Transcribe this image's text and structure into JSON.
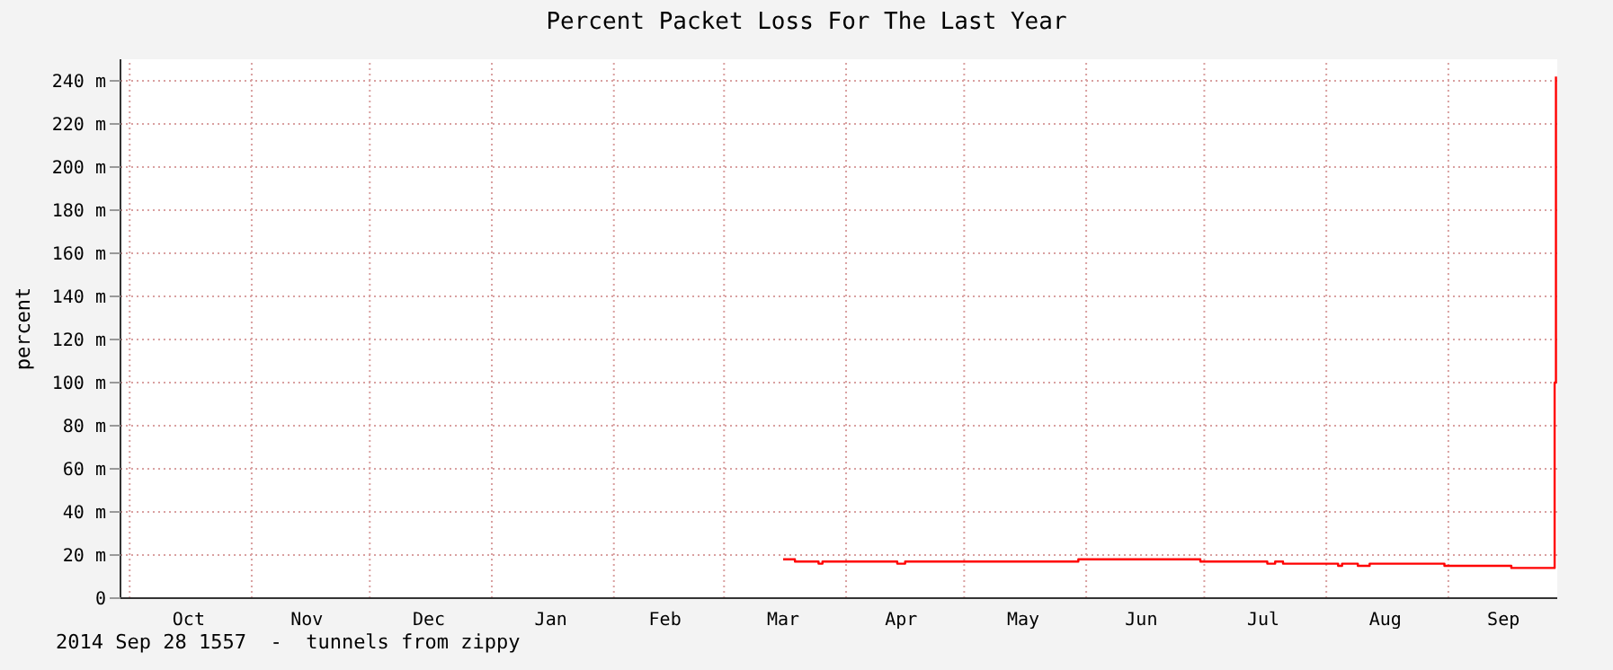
{
  "chart_data": {
    "type": "step",
    "title": "Percent Packet Loss For The Last Year",
    "ylabel": "percent",
    "annotations": [
      "2014 Sep 28 1557  -  tunnels from zippy"
    ],
    "x": [
      "2014-03-16",
      "2014-03-19",
      "2014-03-25",
      "2014-03-26",
      "2014-04-14",
      "2014-04-16",
      "2014-05-08",
      "2014-05-30",
      "2014-06-30",
      "2014-07-17",
      "2014-07-19",
      "2014-07-21",
      "2014-08-04",
      "2014-08-05",
      "2014-08-09",
      "2014-08-12",
      "2014-08-31",
      "2014-09-17",
      "2014-09-28T00:00",
      "2014-09-28T08:00"
    ],
    "series": [
      {
        "color": "#ff0000",
        "values": [
          18,
          17,
          16,
          17,
          16,
          17,
          17,
          18,
          17,
          16,
          17,
          16,
          15,
          16,
          15,
          16,
          15,
          14,
          100,
          242
        ]
      }
    ],
    "xlim": [
      "2013-09-28T15:57",
      "2014-09-28T15:57"
    ],
    "xticks": [
      {
        "value": "2013-10-01",
        "label": null
      },
      {
        "value": "2013-10-16",
        "label": "Oct"
      },
      {
        "value": "2013-11-01",
        "label": null
      },
      {
        "value": "2013-11-15",
        "label": "Nov"
      },
      {
        "value": "2013-12-01",
        "label": null
      },
      {
        "value": "2013-12-16",
        "label": "Dec"
      },
      {
        "value": "2014-01-01",
        "label": null
      },
      {
        "value": "2014-01-16",
        "label": "Jan"
      },
      {
        "value": "2014-02-01",
        "label": null
      },
      {
        "value": "2014-02-14",
        "label": "Feb"
      },
      {
        "value": "2014-03-01",
        "label": null
      },
      {
        "value": "2014-03-16",
        "label": "Mar"
      },
      {
        "value": "2014-04-01",
        "label": null
      },
      {
        "value": "2014-04-15",
        "label": "Apr"
      },
      {
        "value": "2014-05-01",
        "label": null
      },
      {
        "value": "2014-05-16",
        "label": "May"
      },
      {
        "value": "2014-06-01",
        "label": null
      },
      {
        "value": "2014-06-15",
        "label": "Jun"
      },
      {
        "value": "2014-07-01",
        "label": null
      },
      {
        "value": "2014-07-16",
        "label": "Jul"
      },
      {
        "value": "2014-08-01",
        "label": null
      },
      {
        "value": "2014-08-16",
        "label": "Aug"
      },
      {
        "value": "2014-09-01",
        "label": null
      },
      {
        "value": "2014-09-15",
        "label": "Sep"
      }
    ],
    "ylim": [
      0,
      250
    ],
    "yticks": [
      {
        "value": 0,
        "label": "0"
      },
      {
        "value": 20,
        "label": "20 m"
      },
      {
        "value": 40,
        "label": "40 m"
      },
      {
        "value": 60,
        "label": "60 m"
      },
      {
        "value": 80,
        "label": "80 m"
      },
      {
        "value": 100,
        "label": "100 m"
      },
      {
        "value": 120,
        "label": "120 m"
      },
      {
        "value": 140,
        "label": "140 m"
      },
      {
        "value": 160,
        "label": "160 m"
      },
      {
        "value": 180,
        "label": "180 m"
      },
      {
        "value": 200,
        "label": "200 m"
      },
      {
        "value": 220,
        "label": "220 m"
      },
      {
        "value": 240,
        "label": "240 m"
      }
    ],
    "grid": true,
    "marker": "none",
    "line_style": "solid"
  }
}
